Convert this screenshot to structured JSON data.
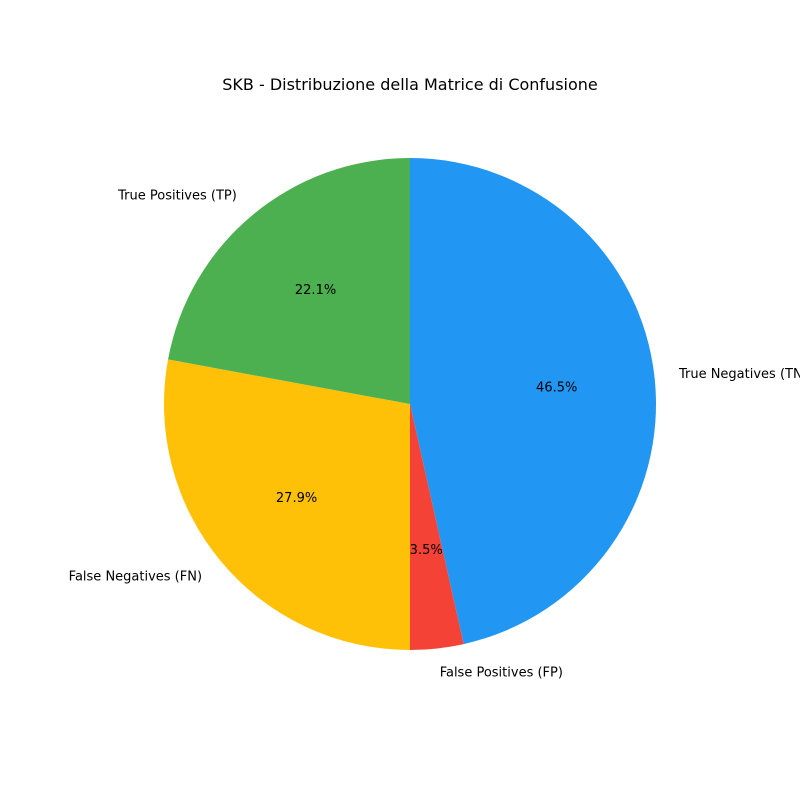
{
  "chart_data": {
    "type": "pie",
    "title": "SKB - Distribuzione della Matrice di Confusione",
    "start_angle_deg": 90,
    "direction": "clockwise",
    "slices": [
      {
        "label": "True Negatives (TN)",
        "value": 46.5,
        "pct_label": "46.5%",
        "color": "#2196F3"
      },
      {
        "label": "False Positives (FP)",
        "value": 3.5,
        "pct_label": "3.5%",
        "color": "#F44336"
      },
      {
        "label": "False Negatives (FN)",
        "value": 27.9,
        "pct_label": "27.9%",
        "color": "#FFC107"
      },
      {
        "label": "True Positives (TP)",
        "value": 22.1,
        "pct_label": "22.1%",
        "color": "#4CAF50"
      }
    ]
  }
}
